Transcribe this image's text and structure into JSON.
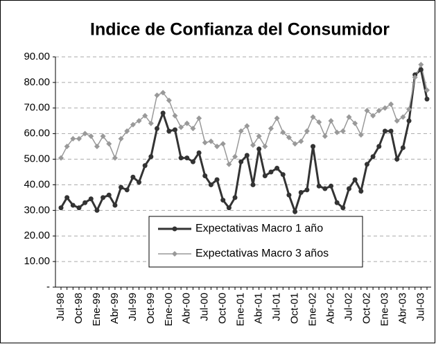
{
  "chart_data": {
    "type": "line",
    "title": "Indice de Confianza del Consumidor",
    "categories": [
      "Jul-98",
      null,
      null,
      "Oct-98",
      null,
      null,
      "Ene-99",
      null,
      null,
      "Abr-99",
      null,
      null,
      "Jul-99",
      null,
      null,
      "Oct-99",
      null,
      null,
      "Ene-00",
      null,
      null,
      "Abr-00",
      null,
      null,
      "Jul-00",
      null,
      null,
      "Oct-00",
      null,
      null,
      "Ene-01",
      null,
      null,
      "Abr-01",
      null,
      null,
      "Jul-01",
      null,
      null,
      "Oct-01",
      null,
      null,
      "Ene-02",
      null,
      null,
      "Abr-02",
      null,
      null,
      "Jul-02",
      null,
      null,
      "Oct-02",
      null,
      null,
      "Ene-03",
      null,
      null,
      "Abr-03",
      null,
      null,
      "Jul-03",
      null
    ],
    "series": [
      {
        "name": "Expectativas Macro 1 año",
        "color": "#333333",
        "marker": "circle",
        "values": [
          31,
          35,
          32,
          31,
          33,
          34.5,
          30,
          35,
          36,
          32,
          39,
          38,
          43,
          41,
          47.5,
          51,
          62,
          68,
          61,
          61.5,
          50.5,
          50.5,
          49,
          52.5,
          43.5,
          40,
          42,
          34,
          31,
          35,
          49,
          51.5,
          40,
          54,
          43.5,
          45,
          46.5,
          44,
          36,
          29.5,
          37,
          38,
          55,
          39.5,
          38.5,
          39.5,
          33,
          31,
          38.5,
          42,
          37.5,
          48,
          51,
          55,
          61,
          61,
          50,
          54.5,
          65,
          83,
          85,
          73.5
        ]
      },
      {
        "name": "Expectativas Macro 3 años",
        "color": "#999999",
        "marker": "diamond",
        "values": [
          50.5,
          55,
          58,
          58,
          60,
          59,
          55,
          59,
          56,
          50.5,
          58,
          61,
          63.5,
          65,
          67,
          64,
          75,
          76,
          73,
          67,
          62.5,
          64,
          62,
          66,
          56.5,
          57,
          55,
          56,
          48,
          51,
          61,
          63,
          55.5,
          59,
          55,
          62,
          66,
          60.5,
          58.5,
          56,
          57,
          61,
          66.5,
          64.5,
          59,
          65,
          60.5,
          61,
          66.5,
          64,
          59.5,
          69,
          67,
          69,
          70,
          71.5,
          65,
          66.5,
          69.5,
          82,
          87,
          77
        ]
      }
    ],
    "ylim": [
      0,
      90
    ],
    "yticks": [
      {
        "value": 0,
        "label": "-"
      },
      {
        "value": 10,
        "label": "10.00"
      },
      {
        "value": 20,
        "label": "20.00"
      },
      {
        "value": 30,
        "label": "30.00"
      },
      {
        "value": 40,
        "label": "40.00"
      },
      {
        "value": 50,
        "label": "50.00"
      },
      {
        "value": 60,
        "label": "60.00"
      },
      {
        "value": 70,
        "label": "70.00"
      },
      {
        "value": 80,
        "label": "80.00"
      },
      {
        "value": 90,
        "label": "90.00"
      }
    ],
    "grid": true
  }
}
